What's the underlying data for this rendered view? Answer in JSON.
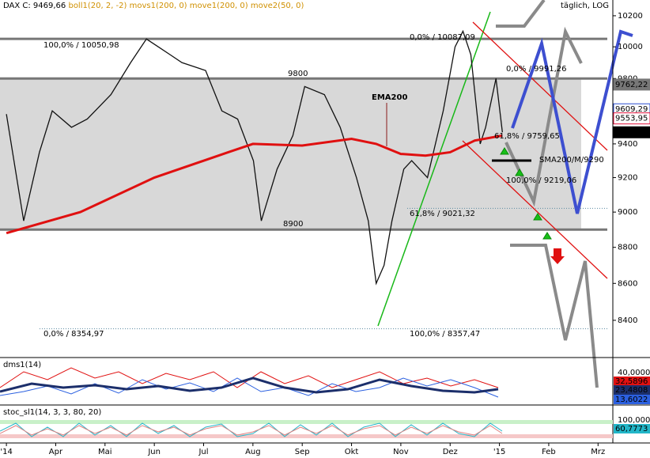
{
  "chart_data": {
    "type": "line",
    "header": [
      "DAX C: 9469,66",
      "boll1(20, 2, -2)",
      "movs1(200, 0)",
      "move1(200, 0)",
      "move2(50, 0)"
    ],
    "title": "täglich, LOG",
    "log": true,
    "ylim": [
      8203,
      10303
    ],
    "yticks": [
      8400,
      8600,
      8800,
      9000,
      9200,
      9400,
      9600,
      9800,
      10000,
      10200
    ],
    "xlim": [
      -0.13,
      12.3
    ],
    "xticks": [
      {
        "value": 0,
        "label": "'14"
      },
      {
        "value": 1,
        "label": "Apr"
      },
      {
        "value": 2,
        "label": "Mai"
      },
      {
        "value": 3,
        "label": "Jun"
      },
      {
        "value": 4,
        "label": "Jul"
      },
      {
        "value": 5,
        "label": "Aug"
      },
      {
        "value": 6,
        "label": "Sep"
      },
      {
        "value": 7,
        "label": "Okt"
      },
      {
        "value": 8,
        "label": "Nov"
      },
      {
        "value": 9,
        "label": "Dez"
      },
      {
        "value": 10,
        "label": "'15"
      },
      {
        "value": 11,
        "label": "Feb"
      },
      {
        "value": 12,
        "label": "Mrz"
      }
    ],
    "series": [
      {
        "name": "DAX",
        "color": "#111111",
        "x": [
          0,
          0.35,
          0.67,
          0.93,
          1.32,
          1.64,
          2.12,
          2.52,
          2.84,
          3.08,
          3.32,
          3.56,
          4.04,
          4.37,
          4.69,
          5.01,
          5.17,
          5.49,
          5.81,
          6.05,
          6.45,
          6.77,
          7.1,
          7.34,
          7.5,
          7.66,
          7.82,
          8.06,
          8.22,
          8.54,
          8.86,
          9.1,
          9.26,
          9.42,
          9.61,
          9.72,
          9.93,
          10.06
        ],
        "values": [
          9580,
          8950,
          9350,
          9600,
          9500,
          9550,
          9700,
          9900,
          10050,
          10000,
          9950,
          9900,
          9850,
          9600,
          9550,
          9300,
          8950,
          9250,
          9450,
          9750,
          9700,
          9500,
          9200,
          8950,
          8600,
          8700,
          8950,
          9250,
          9300,
          9200,
          9600,
          10000,
          10100,
          9950,
          9400,
          9500,
          9800,
          9469.66
        ]
      },
      {
        "name": "EMA200",
        "color": "#e01010",
        "x": [
          0,
          1.5,
          3,
          4.5,
          5,
          6,
          7,
          7.5,
          8,
          8.5,
          9,
          9.5,
          10.06
        ],
        "values": [
          8880,
          9000,
          9200,
          9350,
          9400,
          9390,
          9430,
          9400,
          9340,
          9330,
          9350,
          9420,
          9450
        ]
      }
    ],
    "levels": [
      10050.98,
      9800,
      8900
    ],
    "fib_levels": [
      8354.97,
      9021.32
    ],
    "annotations": [
      "100,0% / 10050,98",
      "9800",
      "8900",
      "0,0% / 8354,97",
      "100,0% / 8357,47",
      "61,8% / 9021,32",
      "0,0% / 10087,09",
      "0,0% / 9991,26",
      "61,8% / 9759,65",
      "100,0% / 9219,06",
      "SMA200/M/9290"
    ],
    "price_labels": [
      {
        "value": 9762.22,
        "label": "9762,22",
        "color": "#777777"
      },
      {
        "value": 9609.29,
        "label": "9609,29",
        "color": "#2b4fd0"
      },
      {
        "value": 9553.95,
        "label": "9553,95",
        "color": "#e0103a"
      },
      {
        "value": 9469.66,
        "label": "9469,66",
        "color": "#000000"
      }
    ]
  },
  "indicators": [
    {
      "title": "dms1(14)",
      "ticks": [
        "40,0000"
      ],
      "labels": [
        {
          "label": "32,5896",
          "color": "#e01010"
        },
        {
          "label": "23,4808",
          "color": "#1c2f6b"
        },
        {
          "label": "13,6022",
          "color": "#2b60e0"
        }
      ]
    },
    {
      "title": "stoc_sl1(14, 3, 3, 80, 20)",
      "ticks": [
        "100,0000"
      ],
      "labels": [
        {
          "label": "60,7773",
          "color": "#22b6c8"
        }
      ]
    }
  ]
}
